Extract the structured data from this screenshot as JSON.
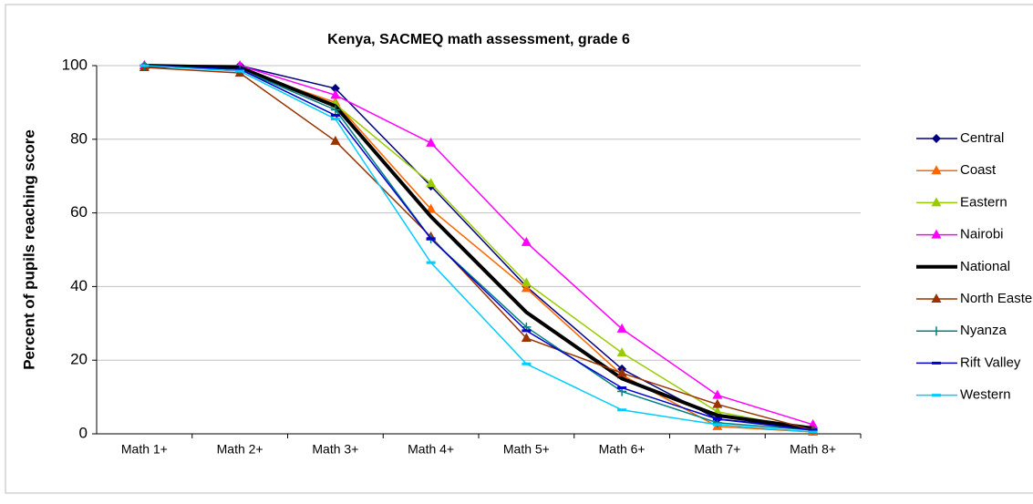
{
  "chart_data": {
    "type": "line",
    "title": "Kenya, SACMEQ math assessment, grade 6",
    "y_label": "Percent of pupils reaching score",
    "categories": [
      "Math 1+",
      "Math 2+",
      "Math 3+",
      "Math 4+",
      "Math 5+",
      "Math 6+",
      "Math 7+",
      "Math 8+"
    ],
    "ylim": [
      0,
      100
    ],
    "yticks": [
      0,
      20,
      40,
      60,
      80,
      100
    ],
    "grid": true,
    "legend": "right",
    "series": [
      {
        "name": "Central",
        "color": "#000080",
        "marker": "diamond",
        "values": [
          100,
          100,
          93.8,
          67.3,
          40,
          17.6,
          4,
          1.5
        ]
      },
      {
        "name": "Coast",
        "color": "#ff6600",
        "marker": "triangle",
        "values": [
          100,
          99,
          90,
          61,
          39.5,
          16,
          2,
          0.5
        ]
      },
      {
        "name": "Eastern",
        "color": "#99cc00",
        "marker": "triangle",
        "values": [
          100,
          99.5,
          89.5,
          68,
          41,
          22,
          6,
          1
        ]
      },
      {
        "name": "Nairobi",
        "color": "#ff00ff",
        "marker": "triangle",
        "values": [
          100,
          100,
          92,
          79,
          52,
          28.5,
          10.5,
          2.5
        ]
      },
      {
        "name": "National",
        "color": "#000000",
        "marker": "none",
        "width": 4,
        "values": [
          100,
          99.5,
          89,
          59,
          33,
          15,
          5,
          1.5
        ]
      },
      {
        "name": "North Eastern",
        "color": "#993300",
        "marker": "triangle",
        "values": [
          99.5,
          98,
          79.5,
          53.5,
          26,
          16.5,
          8,
          1
        ]
      },
      {
        "name": "Nyanza",
        "color": "#008080",
        "marker": "plus",
        "values": [
          100,
          99,
          88,
          53,
          29,
          11.5,
          3,
          1
        ]
      },
      {
        "name": "Rift Valley",
        "color": "#0000cc",
        "marker": "dash",
        "values": [
          100,
          99,
          86.5,
          53,
          28,
          12.5,
          4,
          1
        ]
      },
      {
        "name": "Western",
        "color": "#00ccff",
        "marker": "dash",
        "values": [
          100,
          98.5,
          85.5,
          46.5,
          19,
          6.5,
          2.5,
          0.5
        ]
      }
    ]
  }
}
